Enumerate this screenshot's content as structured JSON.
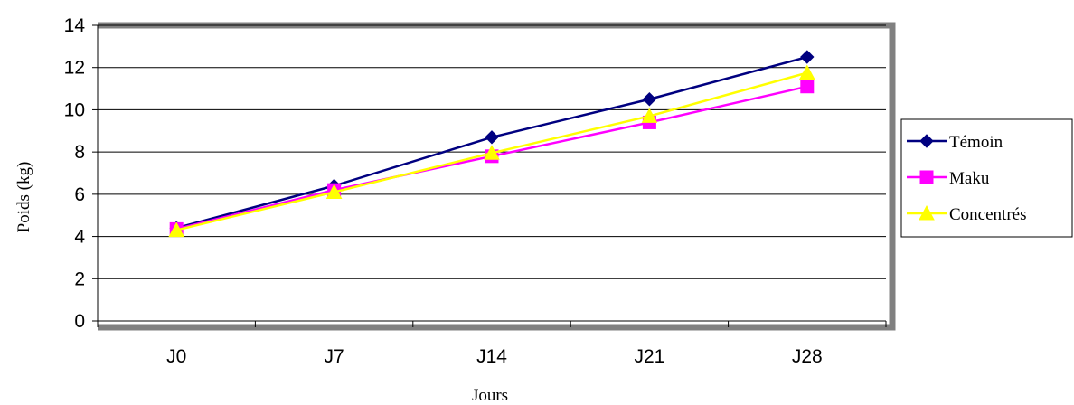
{
  "chart_data": {
    "type": "line",
    "categories": [
      "J0",
      "J7",
      "J14",
      "J21",
      "J28"
    ],
    "xlabel": "Jours",
    "ylabel": "Poids (kg)",
    "ylim": [
      0,
      14
    ],
    "yticks": [
      0,
      2,
      4,
      6,
      8,
      10,
      12,
      14
    ],
    "grid": true,
    "legend": "right",
    "series": [
      {
        "name": "Témoin",
        "values": [
          4.4,
          6.4,
          8.7,
          10.5,
          12.5
        ],
        "color": "#000080",
        "marker": "diamond"
      },
      {
        "name": "Maku",
        "values": [
          4.35,
          6.2,
          7.8,
          9.4,
          11.1
        ],
        "color": "#FF00FF",
        "marker": "square"
      },
      {
        "name": "Concentrés",
        "values": [
          4.3,
          6.1,
          7.95,
          9.7,
          11.75
        ],
        "color": "#FFFF00",
        "marker": "triangle"
      }
    ]
  }
}
